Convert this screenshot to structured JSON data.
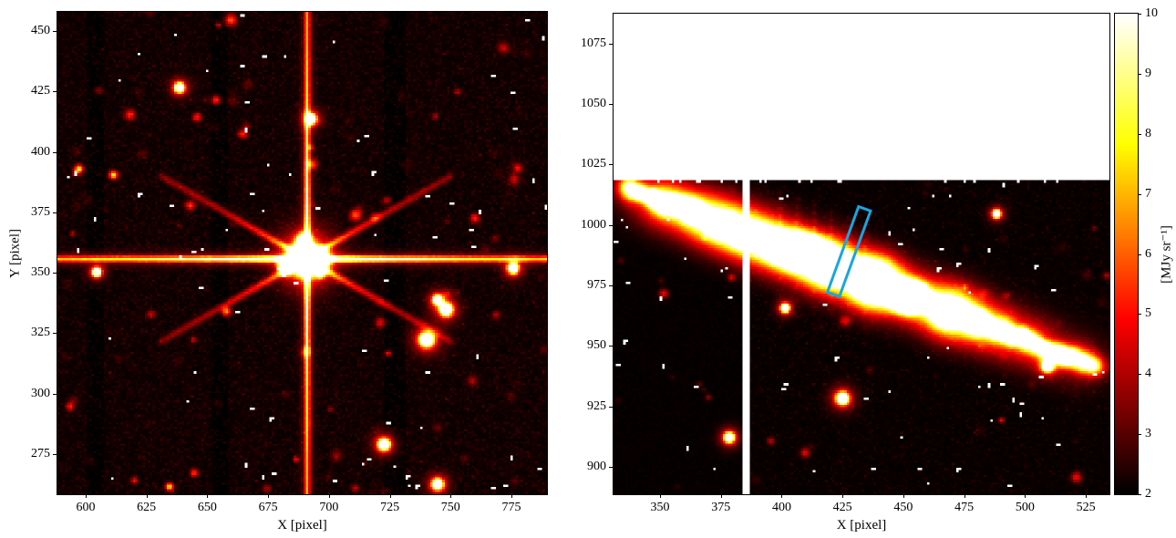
{
  "figure": {
    "background": "#ffffff",
    "axis_color": "#000000",
    "description": "Two-panel astronomical image figure (hot colormap) with shared colorbar"
  },
  "chart_data": [
    {
      "type": "heatmap",
      "panel": "left",
      "title": "",
      "xlabel": "X [pixel]",
      "ylabel": "Y [pixel]",
      "x_range": [
        588.4,
        789.6
      ],
      "y_range": [
        258.4,
        457.9
      ],
      "x_ticks": [
        600,
        625,
        650,
        675,
        700,
        725,
        750,
        775
      ],
      "y_ticks": [
        275,
        300,
        325,
        350,
        375,
        400,
        425,
        450
      ],
      "colormap": "hot",
      "vmin": 2,
      "vmax": 10,
      "description": "Star field with one bright saturated star showing long horizontal, vertical and diagonal diffraction spikes; scattered faint red stars and white bad-pixel speckles; faint dark detector columns",
      "main_star": {
        "x": 690,
        "y": 356,
        "spike_angles_deg": [
          0,
          90,
          30,
          150,
          210,
          330
        ]
      },
      "bright_sources": [
        [
          747.5,
          335.0,
          1.7
        ],
        [
          744.0,
          339.0,
          1.3
        ],
        [
          739.5,
          322.5,
          2.0
        ],
        [
          722.0,
          279.0,
          1.6
        ],
        [
          692.0,
          414.0,
          1.4
        ],
        [
          638.0,
          427.0,
          1.3
        ],
        [
          775.0,
          352.0,
          1.4
        ],
        [
          744.0,
          262.5,
          1.5
        ],
        [
          604.0,
          350.5,
          1.2
        ]
      ],
      "dark_column_bands": [
        [
          601,
          607
        ],
        [
          652,
          658
        ],
        [
          723,
          731
        ]
      ],
      "noise_seed": 7
    },
    {
      "type": "heatmap",
      "panel": "right",
      "title": "",
      "xlabel": "X [pixel]",
      "ylabel": "",
      "x_range": [
        330.9,
        534.7
      ],
      "y_range": [
        888.6,
        1087.4
      ],
      "x_ticks": [
        350,
        375,
        400,
        425,
        450,
        475,
        500,
        525
      ],
      "y_ticks": [
        900,
        925,
        950,
        975,
        1000,
        1025,
        1050,
        1075
      ],
      "colormap": "hot",
      "vmin": 2,
      "vmax": 10,
      "description": "Bright extended source (edge-on streak) crossing frame diagonally; no data (white) above y=1019; white detector gap column near x=385; very dark region left of x=383; cyan slit-aperture rectangle annotation",
      "no_data_above_y": 1019,
      "gap_column_x": [
        384,
        386.5
      ],
      "dark_left_of_x": 383,
      "galaxy": {
        "x_start": 335,
        "y_start": 1016,
        "x_end": 530,
        "y_end": 941,
        "peak_x": 430,
        "core_sigma": 2.3,
        "halo_sigma": 7
      },
      "bright_sources": [
        [
          424.6,
          928.6,
          1.7
        ],
        [
          378.0,
          912.4,
          1.4
        ],
        [
          401.0,
          966.0,
          1.2
        ],
        [
          509.0,
          942.0,
          1.5
        ],
        [
          488.0,
          1005.0,
          1.1
        ]
      ],
      "annotation_box": {
        "cx": 427.5,
        "cy": 989,
        "width": 6.2,
        "height": 39,
        "angle_deg": 20,
        "color": "#18a6df",
        "linewidth": 3
      },
      "noise_seed": 11
    }
  ],
  "colorbar": {
    "label": "[MJy sr⁻¹]",
    "ticks": [
      2,
      3,
      4,
      5,
      6,
      7,
      8,
      9,
      10
    ],
    "vmin": 2,
    "vmax": 10,
    "colormap": "hot",
    "gradient_stops": [
      "#070000",
      "#570000",
      "#ae0000",
      "#f90500",
      "#ff5c00",
      "#ffb700",
      "#ffff12",
      "#ffff86",
      "#ffffff"
    ]
  }
}
